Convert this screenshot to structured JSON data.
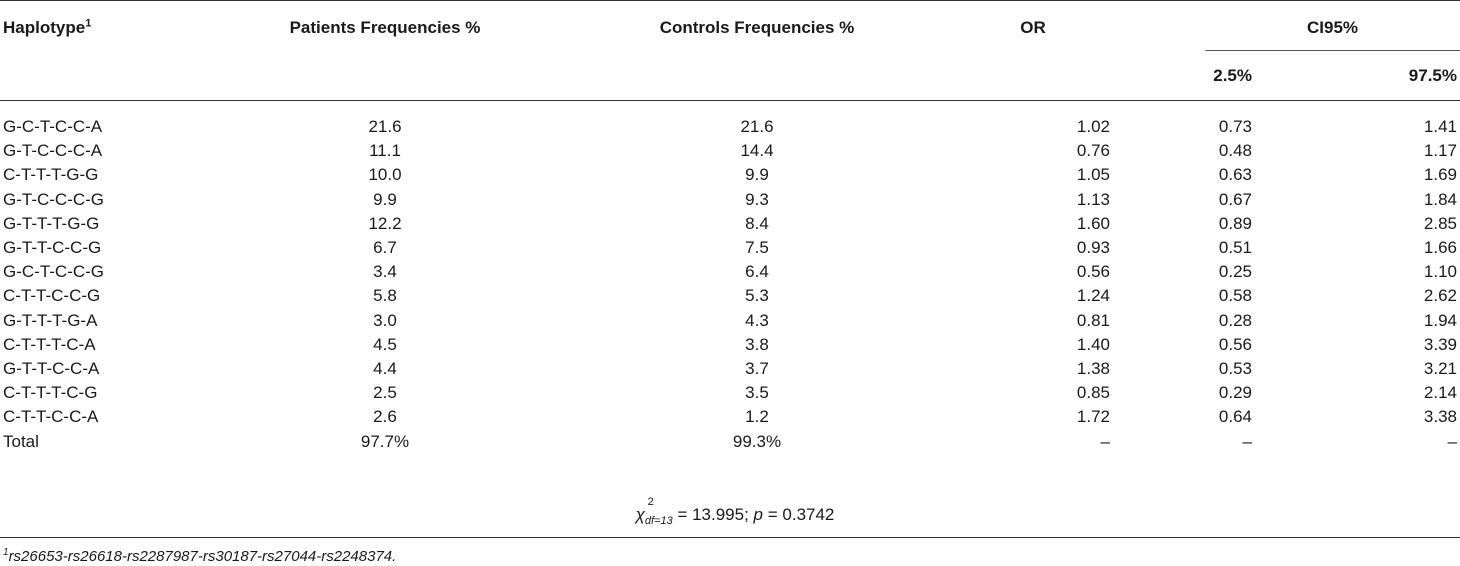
{
  "headers": {
    "haplotype": "Haplotype",
    "haplotype_sup": "1",
    "patients": "Patients Frequencies %",
    "controls": "Controls Frequencies %",
    "or": "OR",
    "ci": "CI95%",
    "ci_low": "2.5%",
    "ci_high": "97.5%"
  },
  "rows": [
    {
      "hap": "G-C-T-C-C-A",
      "pat": "21.6",
      "con": "21.6",
      "or": "1.02",
      "lo": "0.73",
      "hi": "1.41"
    },
    {
      "hap": "G-T-C-C-C-A",
      "pat": "11.1",
      "con": "14.4",
      "or": "0.76",
      "lo": "0.48",
      "hi": "1.17"
    },
    {
      "hap": "C-T-T-T-G-G",
      "pat": "10.0",
      "con": "9.9",
      "or": "1.05",
      "lo": "0.63",
      "hi": "1.69"
    },
    {
      "hap": "G-T-C-C-C-G",
      "pat": "9.9",
      "con": "9.3",
      "or": "1.13",
      "lo": "0.67",
      "hi": "1.84"
    },
    {
      "hap": "G-T-T-T-G-G",
      "pat": "12.2",
      "con": "8.4",
      "or": "1.60",
      "lo": "0.89",
      "hi": "2.85"
    },
    {
      "hap": "G-T-T-C-C-G",
      "pat": "6.7",
      "con": "7.5",
      "or": "0.93",
      "lo": "0.51",
      "hi": "1.66"
    },
    {
      "hap": "G-C-T-C-C-G",
      "pat": "3.4",
      "con": "6.4",
      "or": "0.56",
      "lo": "0.25",
      "hi": "1.10"
    },
    {
      "hap": "C-T-T-C-C-G",
      "pat": "5.8",
      "con": "5.3",
      "or": "1.24",
      "lo": "0.58",
      "hi": "2.62"
    },
    {
      "hap": "G-T-T-T-G-A",
      "pat": "3.0",
      "con": "4.3",
      "or": "0.81",
      "lo": "0.28",
      "hi": "1.94"
    },
    {
      "hap": "C-T-T-T-C-A",
      "pat": "4.5",
      "con": "3.8",
      "or": "1.40",
      "lo": "0.56",
      "hi": "3.39"
    },
    {
      "hap": "G-T-T-C-C-A",
      "pat": "4.4",
      "con": "3.7",
      "or": "1.38",
      "lo": "0.53",
      "hi": "3.21"
    },
    {
      "hap": "C-T-T-T-C-G",
      "pat": "2.5",
      "con": "3.5",
      "or": "0.85",
      "lo": "0.29",
      "hi": "2.14"
    },
    {
      "hap": "C-T-T-C-C-A",
      "pat": "2.6",
      "con": "1.2",
      "or": "1.72",
      "lo": "0.64",
      "hi": "3.38"
    },
    {
      "hap": "Total",
      "pat": "97.7%",
      "con": "99.3%",
      "or": "–",
      "lo": "–",
      "hi": "–"
    }
  ],
  "statistic": {
    "chi_symbol": "χ",
    "chi_sup": "2",
    "chi_sub": "df=13",
    "chi_value": " = 13.995; ",
    "p_symbol": "p",
    "p_value": " = 0.3742"
  },
  "footnote": {
    "sup": "1",
    "text": "rs26653-rs26618-rs2287987-rs30187-rs27044-rs2248374."
  }
}
